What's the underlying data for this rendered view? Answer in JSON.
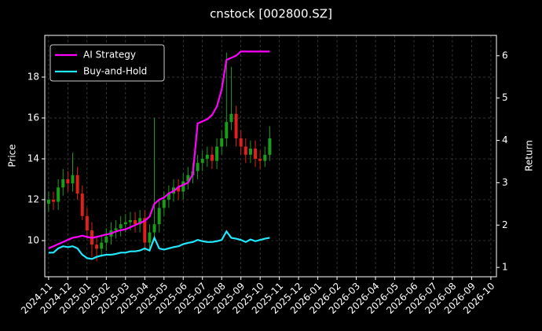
{
  "chart_data": {
    "type": "candlestick",
    "title": "cnstock [002800.SZ]",
    "y_label": "Price",
    "y2_label": "Return",
    "x": [
      0,
      0.25,
      0.5,
      0.75,
      1,
      1.25,
      1.5,
      1.75,
      2,
      2.25,
      2.5,
      2.75,
      3,
      3.25,
      3.5,
      3.75,
      4,
      4.25,
      4.5,
      4.75,
      5,
      5.25,
      5.5,
      5.75,
      6,
      6.25,
      6.5,
      6.75,
      7,
      7.25,
      7.5,
      7.75,
      8,
      8.25,
      8.5,
      8.75,
      9,
      9.25,
      9.5,
      9.75,
      10,
      10.25,
      10.5,
      10.75,
      11,
      11.25,
      11.5
    ],
    "open": [
      11.8,
      12.0,
      11.9,
      12.6,
      13.0,
      12.8,
      13.2,
      12.3,
      11.2,
      10.5,
      9.8,
      9.6,
      9.9,
      10.2,
      10.5,
      10.6,
      10.8,
      10.9,
      11.0,
      10.8,
      11.1,
      9.9,
      10.4,
      10.8,
      11.6,
      12.0,
      12.3,
      12.6,
      12.4,
      12.9,
      13.2,
      13.4,
      13.8,
      14.0,
      14.2,
      13.9,
      14.6,
      15.0,
      15.8,
      16.2,
      15.0,
      14.6,
      14.2,
      14.5,
      14.0,
      13.9,
      14.2
    ],
    "high": [
      12.4,
      12.4,
      13.0,
      13.5,
      13.4,
      14.3,
      13.6,
      12.7,
      11.6,
      10.9,
      10.2,
      10.3,
      10.6,
      10.9,
      11.0,
      11.2,
      11.3,
      11.4,
      11.4,
      11.5,
      11.5,
      10.8,
      16.0,
      12.0,
      12.4,
      12.7,
      13.0,
      13.0,
      13.3,
      13.6,
      13.8,
      14.2,
      14.4,
      14.6,
      14.6,
      15.0,
      15.4,
      19.2,
      18.5,
      16.6,
      15.4,
      15.0,
      14.9,
      14.9,
      14.4,
      14.6,
      15.6
    ],
    "low": [
      11.4,
      11.5,
      11.5,
      12.2,
      12.4,
      12.4,
      12.0,
      11.0,
      10.1,
      9.2,
      9.0,
      9.2,
      9.5,
      9.8,
      10.1,
      10.2,
      10.4,
      10.5,
      10.4,
      10.4,
      9.5,
      9.6,
      10.0,
      10.4,
      11.2,
      11.6,
      11.9,
      12.0,
      12.0,
      12.5,
      12.8,
      13.0,
      13.4,
      13.6,
      13.5,
      13.5,
      14.2,
      14.6,
      15.4,
      14.6,
      14.2,
      13.8,
      13.8,
      13.6,
      13.5,
      13.6,
      13.9
    ],
    "close": [
      12.0,
      11.9,
      12.6,
      13.0,
      12.8,
      13.2,
      12.3,
      11.2,
      10.5,
      9.8,
      9.6,
      9.9,
      10.2,
      10.5,
      10.6,
      10.8,
      10.9,
      11.0,
      10.8,
      11.1,
      9.9,
      10.4,
      10.8,
      11.6,
      12.0,
      12.3,
      12.6,
      12.4,
      12.9,
      13.2,
      13.4,
      13.8,
      14.0,
      14.2,
      13.9,
      14.6,
      15.0,
      15.8,
      16.2,
      15.0,
      14.6,
      14.2,
      14.5,
      14.0,
      13.9,
      14.2,
      15.0
    ],
    "up_color": "#1a9c1a",
    "down_color": "#e0201a",
    "series": [
      {
        "name": "AI Strategy",
        "color": "#ff00ff",
        "axis": "y2",
        "values": [
          1.45,
          1.5,
          1.55,
          1.6,
          1.65,
          1.7,
          1.72,
          1.75,
          1.72,
          1.7,
          1.72,
          1.75,
          1.78,
          1.8,
          1.85,
          1.88,
          1.9,
          1.95,
          2.0,
          2.05,
          2.1,
          2.2,
          2.5,
          2.6,
          2.65,
          2.75,
          2.8,
          2.9,
          2.95,
          3.0,
          3.2,
          4.4,
          4.45,
          4.5,
          4.6,
          4.8,
          5.2,
          5.9,
          5.95,
          6.0,
          6.1,
          6.1,
          6.1,
          6.1,
          6.1,
          6.1,
          6.1
        ]
      },
      {
        "name": "Buy-and-Hold",
        "color": "#22e8ff",
        "axis": "y2",
        "values": [
          1.35,
          1.35,
          1.45,
          1.5,
          1.48,
          1.5,
          1.45,
          1.3,
          1.22,
          1.2,
          1.25,
          1.28,
          1.3,
          1.3,
          1.32,
          1.35,
          1.35,
          1.38,
          1.38,
          1.4,
          1.45,
          1.4,
          1.7,
          1.45,
          1.42,
          1.45,
          1.48,
          1.5,
          1.55,
          1.58,
          1.6,
          1.65,
          1.62,
          1.6,
          1.6,
          1.62,
          1.65,
          1.85,
          1.7,
          1.68,
          1.65,
          1.6,
          1.66,
          1.62,
          1.65,
          1.68,
          1.7
        ]
      }
    ],
    "xlim": [
      -0.2,
      23.29
    ],
    "xticks": [
      {
        "value": 0,
        "label": "2024-11"
      },
      {
        "value": 1,
        "label": "2024-12"
      },
      {
        "value": 2,
        "label": "2025-01"
      },
      {
        "value": 3,
        "label": "2025-02"
      },
      {
        "value": 4,
        "label": "2025-03"
      },
      {
        "value": 5,
        "label": "2025-04"
      },
      {
        "value": 6,
        "label": "2025-05"
      },
      {
        "value": 7,
        "label": "2025-06"
      },
      {
        "value": 8,
        "label": "2025-07"
      },
      {
        "value": 9,
        "label": "2025-08"
      },
      {
        "value": 10,
        "label": "2025-09"
      },
      {
        "value": 11,
        "label": "2025-10"
      },
      {
        "value": 12,
        "label": "2025-11"
      },
      {
        "value": 13,
        "label": "2025-12"
      },
      {
        "value": 14,
        "label": "2026-01"
      },
      {
        "value": 15,
        "label": "2026-02"
      },
      {
        "value": 16,
        "label": "2026-03"
      },
      {
        "value": 17,
        "label": "2026-04"
      },
      {
        "value": 18,
        "label": "2026-05"
      },
      {
        "value": 19,
        "label": "2026-06"
      },
      {
        "value": 20,
        "label": "2026-07"
      },
      {
        "value": 21,
        "label": "2026-08"
      },
      {
        "value": 22,
        "label": "2026-09"
      },
      {
        "value": 23,
        "label": "2026-10"
      }
    ],
    "ylim": [
      8.23,
      20.04
    ],
    "yticks": [
      10,
      12,
      14,
      16,
      18
    ],
    "y2lim": [
      0.78,
      6.48
    ],
    "y2ticks": [
      1,
      2,
      3,
      4,
      5,
      6
    ],
    "grid": true,
    "legend": "upper left"
  }
}
